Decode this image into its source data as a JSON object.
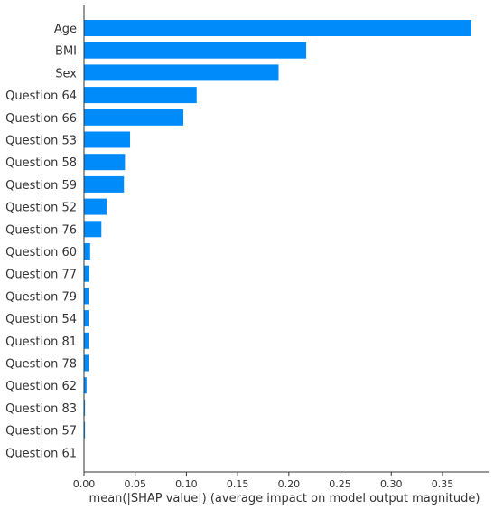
{
  "chart_data": {
    "type": "bar",
    "orientation": "horizontal",
    "categories": [
      "Age",
      "BMI",
      "Sex",
      "Question 64",
      "Question 66",
      "Question 53",
      "Question 58",
      "Question 59",
      "Question 52",
      "Question 76",
      "Question 60",
      "Question 77",
      "Question 79",
      "Question 54",
      "Question 81",
      "Question 78",
      "Question 62",
      "Question 83",
      "Question 57",
      "Question 61"
    ],
    "values": [
      0.378,
      0.217,
      0.19,
      0.11,
      0.097,
      0.045,
      0.04,
      0.039,
      0.022,
      0.017,
      0.006,
      0.005,
      0.0045,
      0.0045,
      0.0045,
      0.0045,
      0.0025,
      0.001,
      0.001,
      0.0
    ],
    "title": "",
    "xlabel": "mean(|SHAP value|) (average impact on model output magnitude)",
    "ylabel": "",
    "xlim": [
      0,
      0.395
    ],
    "xticks": [
      0.0,
      0.05,
      0.1,
      0.15,
      0.2,
      0.25,
      0.3,
      0.35
    ],
    "xtick_labels": [
      "0.00",
      "0.05",
      "0.10",
      "0.15",
      "0.20",
      "0.25",
      "0.30",
      "0.35"
    ],
    "grid": false,
    "legend": "none",
    "bar_color": "#008bfb"
  }
}
